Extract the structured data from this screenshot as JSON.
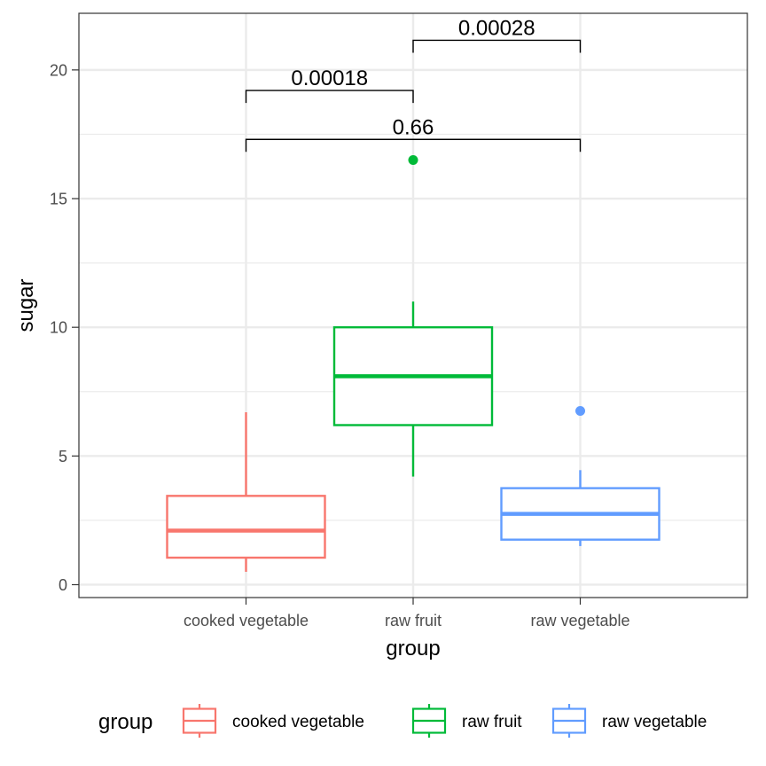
{
  "chart_data": {
    "type": "box",
    "xlabel": "group",
    "ylabel": "sugar",
    "ylim": [
      -0.5,
      22.2
    ],
    "y_ticks": [
      0,
      5,
      10,
      15,
      20
    ],
    "y_minor_ticks": [
      2.5,
      7.5,
      12.5,
      17.5
    ],
    "grid": true,
    "legend_position": "bottom",
    "legend_title": "group",
    "categories": [
      "cooked vegetable",
      "raw fruit",
      "raw vegetable"
    ],
    "series": [
      {
        "name": "cooked vegetable",
        "color": "#F8766D",
        "whisker_low": 0.5,
        "q1": 1.05,
        "median": 2.1,
        "q3": 3.45,
        "whisker_high": 6.7,
        "outliers": []
      },
      {
        "name": "raw fruit",
        "color": "#00BA38",
        "whisker_low": 4.2,
        "q1": 6.2,
        "median": 8.1,
        "q3": 10.0,
        "whisker_high": 11.0,
        "outliers": [
          16.5
        ]
      },
      {
        "name": "raw vegetable",
        "color": "#619CFF",
        "whisker_low": 1.5,
        "q1": 1.75,
        "median": 2.75,
        "q3": 3.75,
        "whisker_high": 4.45,
        "outliers": [
          6.75
        ]
      }
    ],
    "comparisons": [
      {
        "from": 0,
        "to": 2,
        "y": 17.3,
        "label": "0.66"
      },
      {
        "from": 0,
        "to": 1,
        "y": 19.2,
        "label": "0.00018"
      },
      {
        "from": 1,
        "to": 2,
        "y": 21.15,
        "label": "0.00028"
      }
    ]
  }
}
